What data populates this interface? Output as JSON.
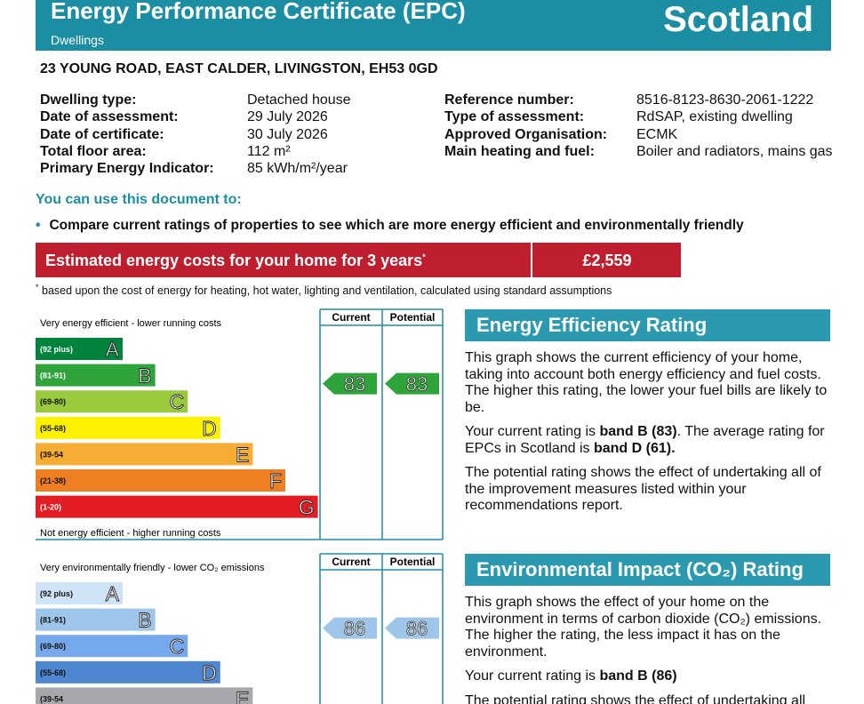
{
  "header": {
    "title": "Energy Performance Certificate (EPC)",
    "subtitle": "Dwellings",
    "country": "Scotland"
  },
  "address": "23 YOUNG ROAD, EAST CALDER, LIVINGSTON, EH53 0GD",
  "details": {
    "left": [
      {
        "label": "Dwelling type:",
        "value": "Detached house"
      },
      {
        "label": "Date of assessment:",
        "value": "29 July 2026"
      },
      {
        "label": "Date of certificate:",
        "value": "30 July 2026"
      },
      {
        "label": "Total floor area:",
        "value": "112 m²"
      },
      {
        "label": "Primary Energy Indicator:",
        "value": "85 kWh/m²/year"
      }
    ],
    "right": [
      {
        "label": "Reference number:",
        "value": "8516-8123-8630-2061-1222"
      },
      {
        "label": "Type of assessment:",
        "value": "RdSAP, existing dwelling"
      },
      {
        "label": "Approved Organisation:",
        "value": "ECMK"
      },
      {
        "label": "Main heating and fuel:",
        "value": "Boiler and radiators, mains gas"
      }
    ]
  },
  "uses": {
    "heading": "You can use this document to:",
    "items": [
      "Compare current ratings of properties to see which are more energy efficient and environmentally friendly"
    ]
  },
  "costs": {
    "label": "Estimated energy costs for your home for 3 years",
    "marker": "*",
    "value": "£2,559"
  },
  "footnote": {
    "marker": "*",
    "text": "based upon the cost of energy for heating, hot water, lighting and ventilation, calculated using standard assumptions"
  },
  "energy_rating": {
    "top_note": "Very energy efficient - lower running costs",
    "bottom_note": "Not energy efficient - higher running costs",
    "columns": [
      "Current",
      "Potential"
    ],
    "bands": [
      {
        "range": "(92 plus)",
        "letter": "A",
        "color": "#00843d"
      },
      {
        "range": "(81-91)",
        "letter": "B",
        "color": "#2ea43a"
      },
      {
        "range": "(69-80)",
        "letter": "C",
        "color": "#9aca3c"
      },
      {
        "range": "(55-68)",
        "letter": "D",
        "color": "#fff200"
      },
      {
        "range": "(39-54",
        "letter": "E",
        "color": "#f7ac34"
      },
      {
        "range": "(21-38)",
        "letter": "F",
        "color": "#ef7d22"
      },
      {
        "range": "(1-20)",
        "letter": "G",
        "color": "#e31d23"
      }
    ],
    "current": 83,
    "potential": 83,
    "arrow_color": "#2ea43a",
    "heading": "Energy Efficiency Rating",
    "paragraphs": [
      [
        {
          "text": "This graph shows the current efficiency of your home, taking into account both energy efficiency and fuel costs. The higher this rating, the lower your fuel bills are likely to be."
        }
      ],
      [
        {
          "text": "Your current rating is "
        },
        {
          "text": "band B (83)",
          "bold": true
        },
        {
          "text": ". The average rating for EPCs in Scotland is "
        },
        {
          "text": "band D (61).",
          "bold": true
        }
      ],
      [
        {
          "text": "The potential rating shows the effect of undertaking all of the improvement measures listed within your recommendations report."
        }
      ]
    ]
  },
  "environmental_rating": {
    "top_note": "Very environmentally friendly - lower CO₂ emissions",
    "columns": [
      "Current",
      "Potential"
    ],
    "bands": [
      {
        "range": "(92 plus)",
        "letter": "A",
        "color": "#cfe3f6"
      },
      {
        "range": "(81-91)",
        "letter": "B",
        "color": "#9ec5ea"
      },
      {
        "range": "(69-80)",
        "letter": "C",
        "color": "#75a9ec"
      },
      {
        "range": "(55-68)",
        "letter": "D",
        "color": "#4f86d0"
      },
      {
        "range": "(39-54",
        "letter": "E",
        "color": "#a6a8ab"
      }
    ],
    "current": 86,
    "potential": 86,
    "arrow_color": "#9ec5ea",
    "heading": "Environmental Impact (CO₂) Rating",
    "paragraphs": [
      [
        {
          "text": "This graph shows the effect of your home on the environment in terms of carbon dioxide (CO₂) emissions. The higher the rating, the less impact it has on the environment."
        }
      ],
      [
        {
          "text": "Your current rating is "
        },
        {
          "text": "band B (86)",
          "bold": true
        }
      ],
      [
        {
          "text": "The potential rating shows the effect of undertaking all"
        }
      ]
    ]
  }
}
